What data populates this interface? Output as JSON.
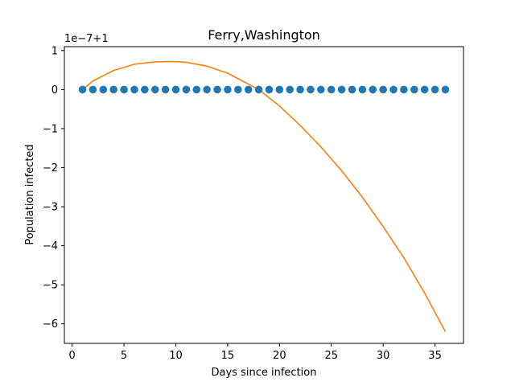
{
  "chart_data": {
    "type": "scatter",
    "title": "Ferry,Washington",
    "xlabel": "Days since infection",
    "ylabel": "Population infected",
    "offset_text": "1e−7+1",
    "xlim": [
      -0.75,
      37.75
    ],
    "ylim": [
      -6.5,
      1.1
    ],
    "xticks": [
      0,
      5,
      10,
      15,
      20,
      25,
      30,
      35
    ],
    "yticks": [
      1,
      0,
      -1,
      -2,
      -3,
      -4,
      -5,
      -6
    ],
    "ytick_labels": [
      "1",
      "0",
      "−1",
      "−2",
      "−3",
      "−4",
      "−5",
      "−6"
    ],
    "grid": false,
    "series": [
      {
        "kind": "scatter",
        "color": "#1f77b4",
        "x": [
          1,
          2,
          3,
          4,
          5,
          6,
          7,
          8,
          9,
          10,
          11,
          12,
          13,
          14,
          15,
          16,
          17,
          18,
          19,
          20,
          21,
          22,
          23,
          24,
          25,
          26,
          27,
          28,
          29,
          30,
          31,
          32,
          33,
          34,
          35,
          36
        ],
        "y": [
          0,
          0,
          0,
          0,
          0,
          0,
          0,
          0,
          0,
          0,
          0,
          0,
          0,
          0,
          0,
          0,
          0,
          0,
          0,
          0,
          0,
          0,
          0,
          0,
          0,
          0,
          0,
          0,
          0,
          0,
          0,
          0,
          0,
          0,
          0,
          0
        ]
      },
      {
        "kind": "line",
        "color": "#ff7f0e",
        "x": [
          1,
          2,
          4,
          6,
          8,
          9.5,
          11,
          13,
          15,
          18,
          20,
          22,
          24,
          26,
          28,
          30,
          32,
          34,
          36
        ],
        "y": [
          0.0,
          0.22,
          0.49,
          0.65,
          0.71,
          0.72,
          0.7,
          0.6,
          0.42,
          0.0,
          -0.42,
          -0.92,
          -1.47,
          -2.08,
          -2.76,
          -3.51,
          -4.31,
          -5.21,
          -6.2
        ]
      }
    ]
  }
}
